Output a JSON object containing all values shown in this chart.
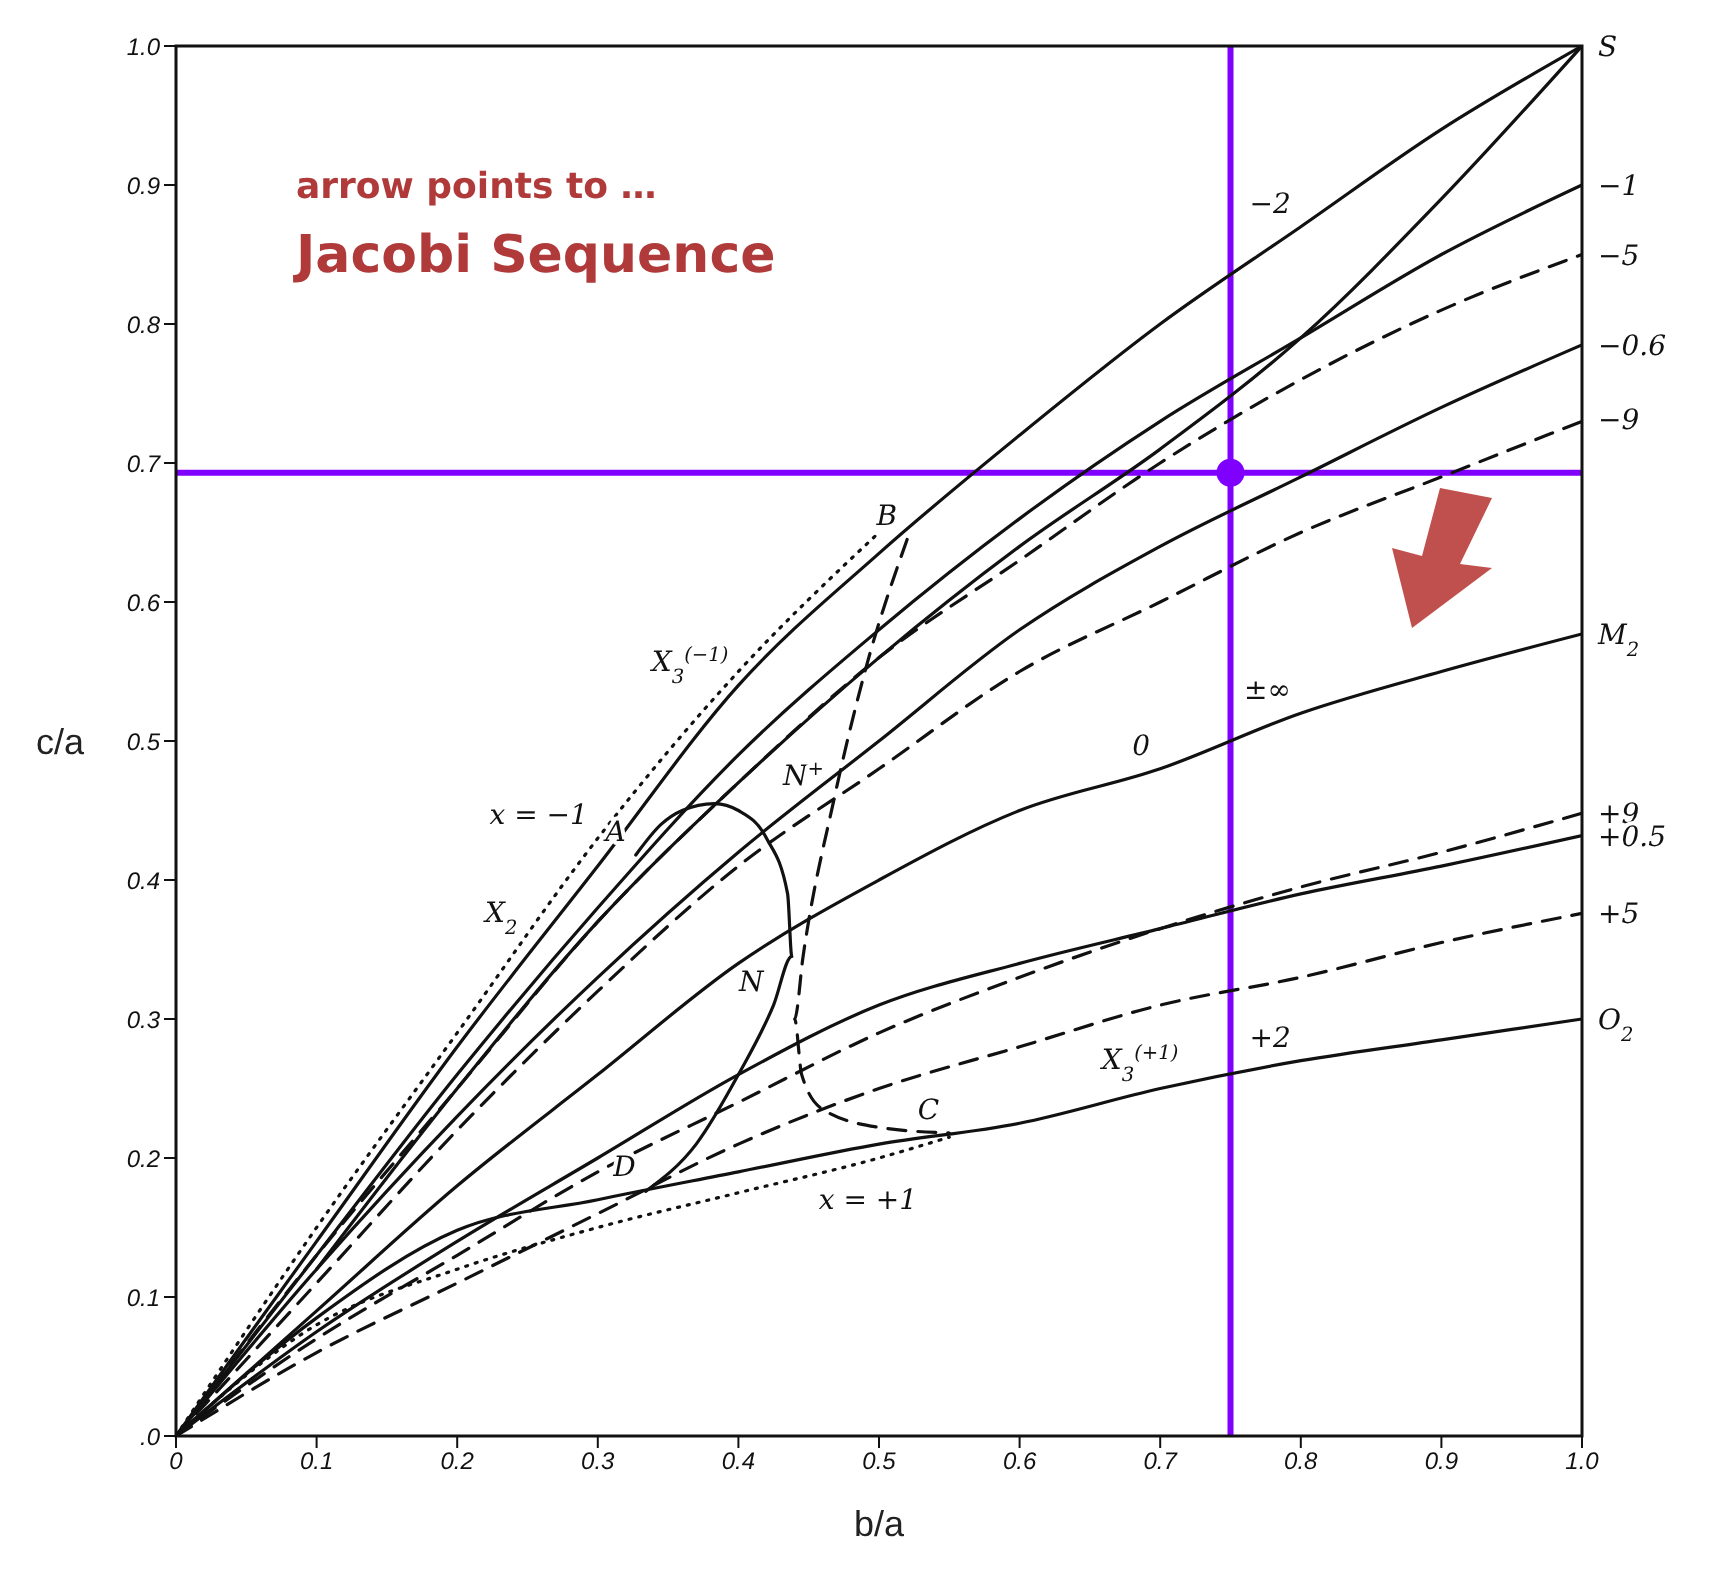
{
  "chart_data": {
    "type": "line",
    "xlabel": "b/a",
    "ylabel": "c/a",
    "x": [
      0,
      0.1,
      0.2,
      0.3,
      0.4,
      0.5,
      0.6,
      0.7,
      0.8,
      0.9,
      1.0
    ],
    "xlim": [
      0,
      1
    ],
    "xticks": [
      0,
      0.1,
      0.2,
      0.3,
      0.4,
      0.5,
      0.6,
      0.7,
      0.8,
      0.9,
      {
        "value": 1,
        "label": "1.0"
      }
    ],
    "ylim": [
      0,
      1
    ],
    "yticks": [
      {
        "value": 0,
        "label": ".0"
      },
      0.1,
      0.2,
      0.3,
      0.4,
      0.5,
      0.6,
      0.7,
      0.8,
      0.9,
      {
        "value": 1,
        "label": "1.0"
      }
    ],
    "grid": false,
    "marker": "none",
    "series": [
      {
        "color": "#111111",
        "line_style": "solid",
        "values": [
          0,
          0.14,
          0.28,
          0.41,
          0.54,
          0.635,
          0.72,
          0.8,
          0.87,
          0.94,
          1.0
        ]
      },
      {
        "color": "#111111",
        "line_style": "solid",
        "values": [
          null,
          0.12,
          0.25,
          0.37,
          0.47,
          0.56,
          0.64,
          0.71,
          0.79,
          0.89,
          1.0
        ]
      },
      {
        "color": "#111111",
        "line_style": "solid",
        "values": [
          0,
          0.13,
          0.26,
          0.38,
          0.49,
          0.58,
          0.66,
          0.73,
          0.79,
          0.85,
          0.9
        ]
      },
      {
        "color": "#111111",
        "line_style": "dashed",
        "values": [
          0,
          0.13,
          0.25,
          0.37,
          0.47,
          0.56,
          0.63,
          0.7,
          0.76,
          0.81,
          0.85
        ]
      },
      {
        "color": "#111111",
        "line_style": "solid",
        "values": [
          0,
          0.12,
          0.23,
          0.33,
          0.42,
          0.5,
          0.58,
          0.64,
          0.69,
          0.74,
          0.785
        ]
      },
      {
        "color": "#111111",
        "line_style": "dashed",
        "values": [
          0,
          0.11,
          0.22,
          0.32,
          0.41,
          0.48,
          0.55,
          0.6,
          0.65,
          0.69,
          0.73
        ]
      },
      {
        "color": "#111111",
        "line_style": "solid",
        "values": [
          0,
          0.09,
          0.18,
          0.26,
          0.34,
          0.4,
          0.45,
          0.48,
          0.52,
          0.55,
          0.577
        ]
      },
      {
        "color": "#111111",
        "line_style": "dashed",
        "values": [
          0,
          0.07,
          0.13,
          0.19,
          0.24,
          0.29,
          0.33,
          0.365,
          0.395,
          0.42,
          0.448
        ]
      },
      {
        "color": "#111111",
        "line_style": "solid",
        "values": [
          0,
          0.075,
          0.14,
          0.2,
          0.26,
          0.31,
          0.34,
          0.365,
          0.39,
          0.41,
          0.432
        ]
      },
      {
        "color": "#111111",
        "line_style": "dashed",
        "values": [
          0,
          0.06,
          0.11,
          0.16,
          0.21,
          0.25,
          0.28,
          0.31,
          0.33,
          0.355,
          0.376
        ]
      },
      {
        "color": "#111111",
        "line_style": "solid",
        "values": [
          0,
          0.085,
          0.148,
          0.17,
          0.19,
          0.21,
          0.225,
          0.25,
          0.27,
          0.285,
          0.3
        ]
      },
      {
        "color": "#111111",
        "line_style": "solid",
        "x": [
          0.334,
          0.37,
          0.4,
          0.425,
          0.438,
          0.435,
          0.42,
          0.4,
          0.383,
          0.36,
          0.345,
          0.327
        ],
        "values": [
          0.176,
          0.21,
          0.26,
          0.31,
          0.345,
          0.39,
          0.43,
          0.45,
          0.455,
          0.45,
          0.44,
          0.418
        ]
      },
      {
        "color": "#111111",
        "line_style": "dashed",
        "x": [
          0.52,
          0.49,
          0.468,
          0.446,
          0.44,
          0.445,
          0.46,
          0.5,
          0.55
        ],
        "values": [
          0.645,
          0.55,
          0.458,
          0.345,
          0.3,
          0.26,
          0.235,
          0.222,
          0.218
        ]
      },
      {
        "color": "#111111",
        "line_style": "dotted",
        "x": [
          0,
          0.1,
          0.2,
          0.3,
          0.4,
          0.5
        ],
        "values": [
          0,
          0.15,
          0.29,
          0.43,
          0.55,
          0.65
        ]
      },
      {
        "color": "#111111",
        "line_style": "dotted",
        "x": [
          0,
          0.1,
          0.2,
          0.3,
          0.4,
          0.5,
          0.55
        ],
        "values": [
          0,
          0.08,
          0.12,
          0.15,
          0.175,
          0.2,
          0.215
        ]
      },
      {
        "type": "scatter",
        "color": "#8000ff",
        "marker": "circle",
        "x": [
          0.75
        ],
        "values": [
          0.693
        ]
      }
    ],
    "ref_lines": [
      {
        "axis": "x",
        "value": 0.75,
        "color": "#8000ff",
        "line_style": "solid"
      },
      {
        "axis": "y",
        "value": 0.693,
        "color": "#8000ff",
        "line_style": "solid"
      }
    ],
    "annotations": [
      "arrow points to …",
      "Jacobi Sequence",
      {
        "text": "S",
        "x": 1.0,
        "y": 1.0
      },
      {
        "text": "−2",
        "x": 0.8,
        "y": 0.87
      },
      {
        "text": "−1",
        "x": 1.0,
        "y": 0.9
      },
      {
        "text": "−5",
        "x": 1.0,
        "y": 0.85
      },
      {
        "text": "−0.6",
        "x": 1.0,
        "y": 0.785
      },
      {
        "text": "−9",
        "x": 1.0,
        "y": 0.732
      },
      {
        "text": "M$_{2}$",
        "x": 1.0,
        "y": 0.577
      },
      {
        "text": "+9",
        "x": 1.0,
        "y": 0.448
      },
      {
        "text": "+0.5",
        "x": 1.0,
        "y": 0.432
      },
      {
        "text": "+5",
        "x": 1.0,
        "y": 0.376
      },
      {
        "text": "O$_{2}$",
        "x": 1.0,
        "y": 0.3
      },
      {
        "text": "0",
        "x": 0.7,
        "y": 0.48
      },
      {
        "text": "±∞",
        "x": 0.8,
        "y": 0.52
      },
      {
        "text": "+2",
        "x": 0.8,
        "y": 0.27
      },
      {
        "text": "X$_{3}$$^{(+1)}$",
        "x": 0.72,
        "y": 0.254
      },
      {
        "text": "C",
        "x": 0.55,
        "y": 0.218
      },
      {
        "text": "D",
        "x": 0.334,
        "y": 0.177
      },
      {
        "text": "A",
        "x": 0.327,
        "y": 0.418
      },
      {
        "text": "B",
        "x": 0.52,
        "y": 0.645
      },
      {
        "text": "N",
        "x": 0.425,
        "y": 0.31
      },
      {
        "text": "N$^{+}$",
        "x": 0.468,
        "y": 0.458
      },
      {
        "text": "X$_{2}$",
        "x": 0.25,
        "y": 0.36
      },
      {
        "text": "X$_{3}$$^{(−1)}$",
        "x": 0.4,
        "y": 0.54
      },
      {
        "text": "x = −1",
        "x": 0.3,
        "y": 0.43
      },
      {
        "text": "x = +1",
        "x": 0.45,
        "y": 0.1875
      }
    ]
  }
}
